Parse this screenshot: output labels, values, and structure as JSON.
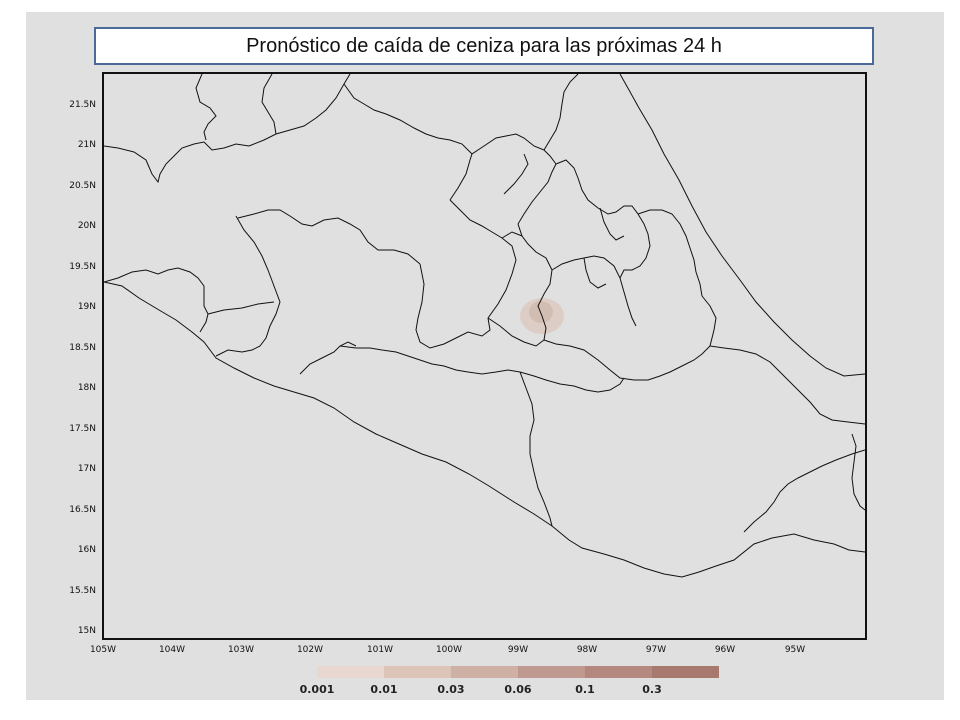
{
  "title": "Pronóstico de caída de ceniza para las próximas 24 h",
  "map": {
    "lat_labels": [
      "21.5N",
      "21N",
      "20.5N",
      "20N",
      "19.5N",
      "19N",
      "18.5N",
      "18N",
      "17.5N",
      "17N",
      "16.5N",
      "16N",
      "15.5N",
      "15N"
    ],
    "lon_labels": [
      "105W",
      "104W",
      "103W",
      "102W",
      "101W",
      "100W",
      "99W",
      "98W",
      "97W",
      "96W",
      "95W"
    ],
    "lat_range": [
      14.9,
      21.85
    ],
    "lon_range": [
      -105,
      -95.5
    ],
    "plume_center": {
      "lon": -98.6,
      "lat": 18.95
    },
    "colors": {
      "background": "#e0e0e0",
      "border": "#111111",
      "title_border": "#4a6a9a"
    }
  },
  "legend": {
    "labels": [
      "0.001",
      "0.01",
      "0.03",
      "0.06",
      "0.1",
      "0.3"
    ],
    "colors": [
      "#e8d8d0",
      "#dcc4b8",
      "#ceb0a4",
      "#c09a90",
      "#b4887e",
      "#a7796f"
    ]
  }
}
